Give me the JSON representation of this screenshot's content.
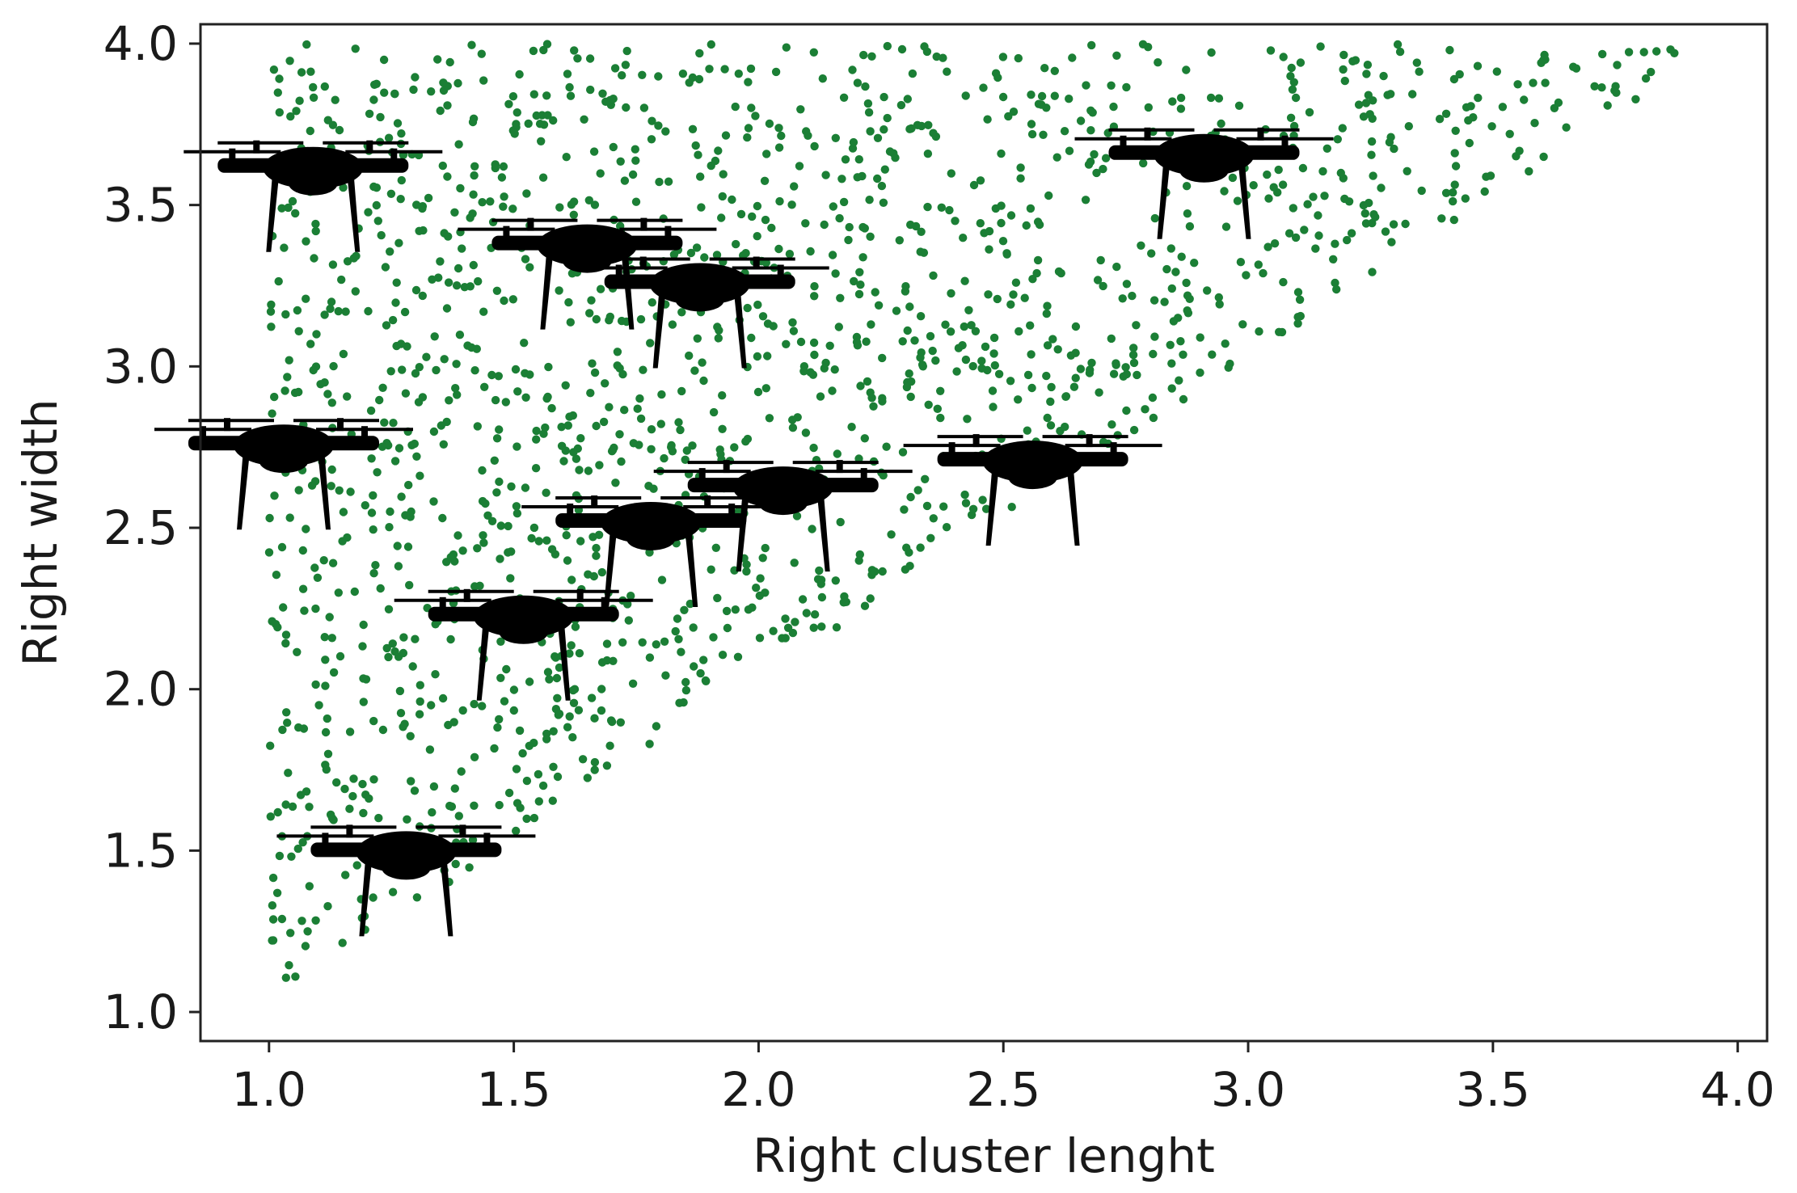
{
  "chart_data": {
    "type": "scatter",
    "title": "",
    "xlabel": "Right cluster lenght",
    "ylabel": "Right width",
    "xlim": [
      0.86,
      4.06
    ],
    "ylim": [
      0.91,
      4.06
    ],
    "xticks": [
      1.0,
      1.5,
      2.0,
      2.5,
      3.0,
      3.5,
      4.0
    ],
    "yticks": [
      1.0,
      1.5,
      2.0,
      2.5,
      3.0,
      3.5,
      4.0
    ],
    "xtick_labels": [
      "1.0",
      "1.5",
      "2.0",
      "2.5",
      "3.0",
      "3.5",
      "4.0"
    ],
    "ytick_labels": [
      "1.0",
      "1.5",
      "2.0",
      "2.5",
      "3.0",
      "3.5",
      "4.0"
    ],
    "grid": false,
    "legend": "none",
    "point_color": "#1b7f35",
    "point_region": {
      "description": "uniformly scattered points filling the triangle 1.0 <= x <= 3.9, x <= y <= 4.0",
      "x_range": [
        1.0,
        3.92
      ],
      "y_range": [
        1.03,
        4.0
      ],
      "approx_count": 1600
    },
    "markers": {
      "icon": "drone-icon",
      "color": "#000000",
      "points": [
        {
          "x": 1.09,
          "y": 3.63
        },
        {
          "x": 1.03,
          "y": 2.77
        },
        {
          "x": 1.28,
          "y": 1.51
        },
        {
          "x": 1.65,
          "y": 3.39
        },
        {
          "x": 1.88,
          "y": 3.27
        },
        {
          "x": 1.52,
          "y": 2.24
        },
        {
          "x": 1.78,
          "y": 2.53
        },
        {
          "x": 2.05,
          "y": 2.64
        },
        {
          "x": 2.56,
          "y": 2.72
        },
        {
          "x": 2.91,
          "y": 3.67
        }
      ]
    }
  }
}
